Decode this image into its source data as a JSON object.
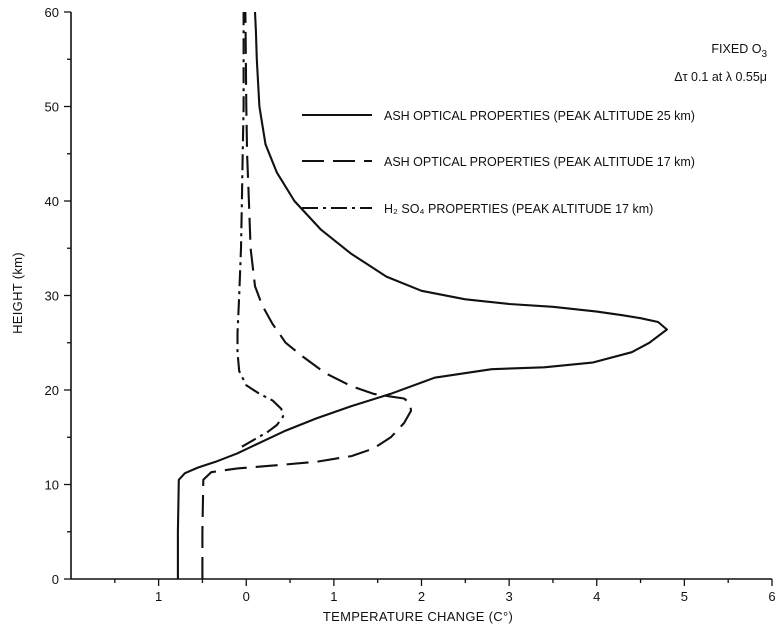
{
  "chart_data": {
    "type": "line",
    "title": "",
    "xlabel": "TEMPERATURE CHANGE (C°)",
    "ylabel": "HEIGHT (km)",
    "xlim": [
      -2,
      6
    ],
    "ylim": [
      0,
      60
    ],
    "x_ticks": [
      -1,
      0,
      1,
      2,
      3,
      4,
      5,
      6
    ],
    "x_tick_labels": [
      "1",
      "0",
      "1",
      "2",
      "3",
      "4",
      "5",
      "6"
    ],
    "y_ticks": [
      0,
      10,
      20,
      30,
      40,
      50,
      60
    ],
    "y_tick_labels": [
      "0",
      "10",
      "20",
      "30",
      "40",
      "50",
      "60"
    ],
    "grid": false,
    "legend_position": "top-right",
    "annotations": {
      "line1_prefix": "FIXED O",
      "line1_sub": "3",
      "line2": "Δτ   0.1 at λ   0.55μ"
    },
    "series": [
      {
        "name": "ASH OPTICAL PROPERTIES (PEAK ALTITUDE 25 km)",
        "style": "solid",
        "x": [
          -0.78,
          -0.78,
          -0.77,
          -0.7,
          -0.55,
          -0.35,
          -0.1,
          0.15,
          0.45,
          0.8,
          1.2,
          1.65,
          2.15,
          2.8,
          3.4,
          3.95,
          4.4,
          4.6,
          4.8,
          4.7,
          4.5,
          4.3,
          4.0,
          3.5,
          3.0,
          2.5,
          2.0,
          1.6,
          1.2,
          0.85,
          0.55,
          0.35,
          0.22,
          0.15,
          0.12,
          0.11,
          0.1
        ],
        "y": [
          0,
          5,
          10.5,
          11.2,
          11.8,
          12.4,
          13.3,
          14.4,
          15.7,
          17.0,
          18.3,
          19.6,
          21.3,
          22.2,
          22.4,
          22.9,
          24.0,
          25.0,
          26.4,
          27.2,
          27.6,
          27.9,
          28.3,
          28.8,
          29.1,
          29.6,
          30.5,
          32.0,
          34.4,
          37.0,
          40.0,
          43.0,
          46.0,
          50.0,
          55.0,
          58.0,
          60.0
        ]
      },
      {
        "name": "ASH OPTICAL PROPERTIES (PEAK ALTITUDE 17 km)",
        "style": "dashed",
        "x": [
          -0.5,
          -0.5,
          -0.49,
          -0.4,
          -0.1,
          0.3,
          0.8,
          1.2,
          1.45,
          1.65,
          1.8,
          1.88,
          1.87,
          1.8,
          1.65,
          1.45,
          1.2,
          0.9,
          0.65,
          0.45,
          0.3,
          0.18,
          0.1,
          0.05,
          0.03,
          0.01,
          0.0,
          -0.01
        ],
        "y": [
          0,
          5,
          10.5,
          11.3,
          11.7,
          12.0,
          12.4,
          13.0,
          13.8,
          15.0,
          16.5,
          17.8,
          18.6,
          19.1,
          19.3,
          19.6,
          20.4,
          21.8,
          23.5,
          25.0,
          27.0,
          29.0,
          31.0,
          35.0,
          40.0,
          45.0,
          50.0,
          60.0
        ]
      },
      {
        "name": "H₂ SO₄ PROPERTIES (PEAK ALTITUDE 17 km)",
        "style": "dashdot",
        "x": [
          -0.05,
          0.1,
          0.25,
          0.35,
          0.42,
          0.4,
          0.3,
          0.15,
          0.0,
          -0.08,
          -0.1,
          -0.1,
          -0.08,
          -0.06,
          -0.05,
          -0.04,
          -0.03,
          -0.03
        ],
        "y": [
          14.0,
          14.8,
          15.6,
          16.3,
          17.2,
          18.0,
          18.9,
          19.6,
          20.5,
          22.0,
          24.0,
          26.0,
          30.0,
          35.0,
          40.0,
          45.0,
          50.0,
          60.0
        ]
      }
    ]
  }
}
